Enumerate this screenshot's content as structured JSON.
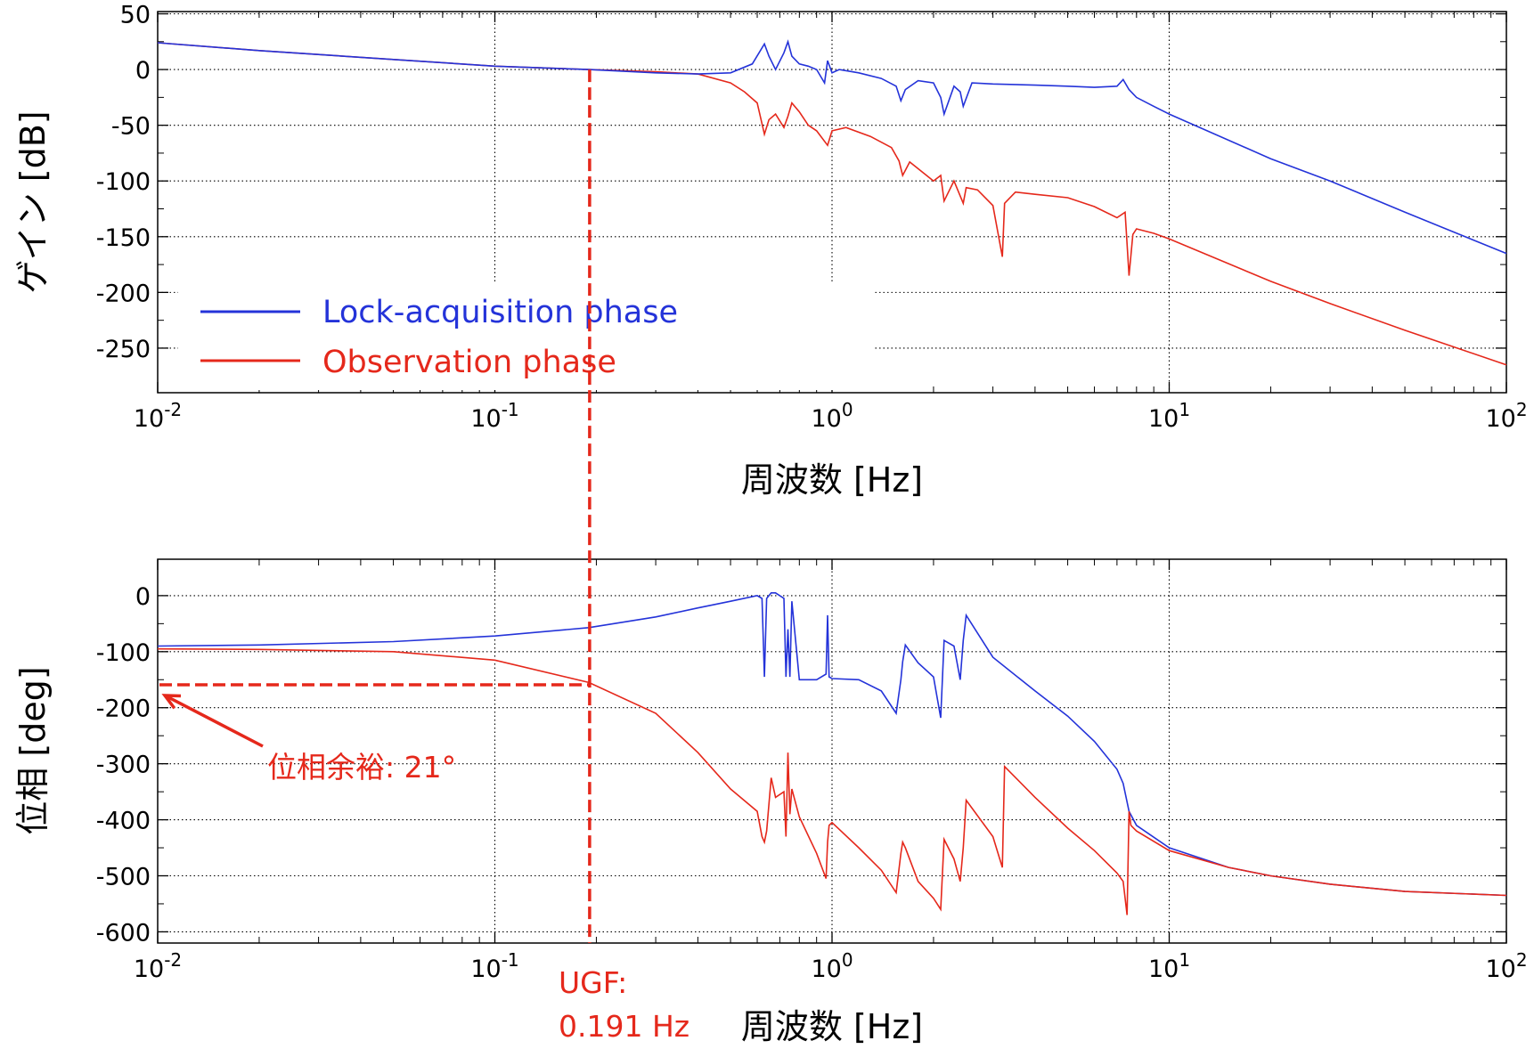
{
  "colors": {
    "lock": "#2433d9",
    "obs": "#e5281b",
    "annot": "#e5281b"
  },
  "chart_data": [
    {
      "type": "line",
      "panel": "gain",
      "xlabel": "周波数 [Hz]",
      "ylabel": "ゲイン [dB]",
      "xscale": "log",
      "xlim": [
        0.01,
        100
      ],
      "ylim": [
        -290,
        52
      ],
      "xticks": [
        0.01,
        0.1,
        1,
        10,
        100
      ],
      "xtick_labels": [
        {
          "base": "10",
          "exp": "-2"
        },
        {
          "base": "10",
          "exp": "-1"
        },
        {
          "base": "10",
          "exp": "0"
        },
        {
          "base": "10",
          "exp": "1"
        },
        {
          "base": "10",
          "exp": "2"
        }
      ],
      "yticks": [
        50,
        0,
        -50,
        -100,
        -150,
        -200,
        -250
      ],
      "ytick_labels": [
        "50",
        "0",
        "-50",
        "-100",
        "-150",
        "-200",
        "-250"
      ],
      "grid": true,
      "legend": {
        "placement": "lower-left",
        "entries": [
          {
            "series": "lock",
            "label": "Lock-acquisition phase"
          },
          {
            "series": "obs",
            "label": "Observation phase"
          }
        ]
      },
      "series": [
        {
          "id": "lock",
          "name": "Lock-acquisition phase",
          "x": [
            0.01,
            0.02,
            0.05,
            0.1,
            0.19,
            0.3,
            0.4,
            0.5,
            0.58,
            0.63,
            0.65,
            0.68,
            0.72,
            0.74,
            0.76,
            0.8,
            0.85,
            0.9,
            0.95,
            0.97,
            1.0,
            1.05,
            1.2,
            1.4,
            1.55,
            1.6,
            1.65,
            1.8,
            2.0,
            2.1,
            2.15,
            2.3,
            2.4,
            2.45,
            2.6,
            3.0,
            4.0,
            5.0,
            6.0,
            7.0,
            7.3,
            7.6,
            8.0,
            9.0,
            10,
            20,
            30,
            50,
            100
          ],
          "y": [
            24,
            17,
            9,
            3,
            0,
            -3,
            -4,
            -3,
            5,
            23,
            12,
            0,
            15,
            25,
            12,
            5,
            3,
            0,
            -12,
            8,
            -3,
            0,
            -3,
            -8,
            -15,
            -28,
            -18,
            -10,
            -12,
            -25,
            -40,
            -15,
            -20,
            -33,
            -12,
            -13,
            -14,
            -15,
            -16,
            -15,
            -9,
            -18,
            -25,
            -33,
            -40,
            -80,
            -100,
            -128,
            -165
          ]
        },
        {
          "id": "obs",
          "name": "Observation phase",
          "x": [
            0.01,
            0.02,
            0.05,
            0.1,
            0.19,
            0.3,
            0.4,
            0.5,
            0.55,
            0.6,
            0.63,
            0.65,
            0.68,
            0.72,
            0.74,
            0.76,
            0.8,
            0.85,
            0.9,
            0.97,
            1.0,
            1.1,
            1.3,
            1.5,
            1.58,
            1.62,
            1.7,
            2.0,
            2.1,
            2.15,
            2.3,
            2.45,
            2.5,
            2.7,
            3.0,
            3.2,
            3.25,
            3.5,
            4.0,
            5.0,
            6.0,
            7.0,
            7.4,
            7.6,
            7.8,
            8.0,
            9.0,
            10,
            20,
            30,
            50,
            100
          ],
          "y": [
            24,
            17,
            9,
            3,
            0,
            -2,
            -4,
            -12,
            -20,
            -30,
            -58,
            -45,
            -40,
            -52,
            -42,
            -30,
            -38,
            -50,
            -55,
            -68,
            -55,
            -52,
            -60,
            -70,
            -82,
            -95,
            -83,
            -100,
            -95,
            -118,
            -100,
            -120,
            -106,
            -108,
            -122,
            -168,
            -120,
            -110,
            -112,
            -115,
            -123,
            -133,
            -128,
            -185,
            -148,
            -143,
            -147,
            -152,
            -190,
            -210,
            -234,
            -265
          ]
        }
      ],
      "annotations": []
    },
    {
      "type": "line",
      "panel": "phase",
      "xlabel": "周波数 [Hz]",
      "ylabel": "位相 [deg]",
      "xscale": "log",
      "xlim": [
        0.01,
        100
      ],
      "ylim": [
        -620,
        65
      ],
      "xticks": [
        0.01,
        0.1,
        1,
        10,
        100
      ],
      "xtick_labels": [
        {
          "base": "10",
          "exp": "-2"
        },
        {
          "base": "10",
          "exp": "-1"
        },
        {
          "base": "10",
          "exp": "0"
        },
        {
          "base": "10",
          "exp": "1"
        },
        {
          "base": "10",
          "exp": "2"
        }
      ],
      "yticks": [
        0,
        -100,
        -200,
        -300,
        -400,
        -500,
        -600
      ],
      "ytick_labels": [
        "0",
        "-100",
        "-200",
        "-300",
        "-400",
        "-500",
        "-600"
      ],
      "grid": true,
      "series": [
        {
          "id": "lock",
          "name": "Lock-acquisition phase",
          "x": [
            0.01,
            0.02,
            0.05,
            0.1,
            0.19,
            0.3,
            0.4,
            0.5,
            0.6,
            0.62,
            0.63,
            0.64,
            0.66,
            0.68,
            0.72,
            0.73,
            0.74,
            0.75,
            0.76,
            0.8,
            0.9,
            0.96,
            0.97,
            0.98,
            1.0,
            1.2,
            1.4,
            1.55,
            1.6,
            1.62,
            1.65,
            1.8,
            2.0,
            2.1,
            2.15,
            2.3,
            2.4,
            2.45,
            2.5,
            3.0,
            4.0,
            5.0,
            6.0,
            7.0,
            7.3,
            7.6,
            8.0,
            10,
            15,
            20,
            30,
            50,
            100
          ],
          "y": [
            -90,
            -88,
            -82,
            -72,
            -57,
            -38,
            -22,
            -10,
            0,
            -5,
            -145,
            -5,
            5,
            5,
            -5,
            -145,
            -60,
            -145,
            -10,
            -150,
            -150,
            -140,
            -35,
            -145,
            -148,
            -150,
            -170,
            -210,
            -150,
            -118,
            -88,
            -120,
            -145,
            -218,
            -80,
            -90,
            -150,
            -80,
            -35,
            -110,
            -170,
            -215,
            -260,
            -310,
            -335,
            -385,
            -410,
            -450,
            -485,
            -500,
            -515,
            -528,
            -535
          ]
        },
        {
          "id": "obs",
          "name": "Observation phase",
          "x": [
            0.01,
            0.02,
            0.05,
            0.1,
            0.19,
            0.3,
            0.4,
            0.5,
            0.6,
            0.62,
            0.63,
            0.64,
            0.66,
            0.68,
            0.72,
            0.73,
            0.74,
            0.75,
            0.76,
            0.8,
            0.9,
            0.96,
            0.97,
            0.98,
            1.0,
            1.2,
            1.4,
            1.55,
            1.6,
            1.62,
            1.65,
            1.8,
            2.0,
            2.1,
            2.15,
            2.3,
            2.4,
            2.45,
            2.5,
            3.0,
            3.2,
            3.25,
            4.0,
            5.0,
            6.0,
            7.0,
            7.3,
            7.5,
            7.6,
            7.7,
            8.0,
            10,
            15,
            20,
            30,
            50,
            100
          ],
          "y": [
            -95,
            -96,
            -100,
            -115,
            -155,
            -210,
            -280,
            -345,
            -385,
            -430,
            -440,
            -420,
            -325,
            -360,
            -350,
            -430,
            -280,
            -390,
            -345,
            -395,
            -460,
            -505,
            -440,
            -410,
            -405,
            -450,
            -490,
            -530,
            -460,
            -440,
            -450,
            -510,
            -540,
            -560,
            -435,
            -470,
            -510,
            -450,
            -365,
            -430,
            -485,
            -305,
            -360,
            -415,
            -455,
            -495,
            -510,
            -570,
            -385,
            -410,
            -420,
            -455,
            -485,
            -500,
            -515,
            -528,
            -535
          ]
        }
      ],
      "annotations": [
        {
          "id": "ugf",
          "lines": [
            "UGF:",
            "0.191 Hz"
          ],
          "x": 0.191
        },
        {
          "id": "pm",
          "text": "位相余裕: 21°",
          "y": -159
        }
      ]
    }
  ]
}
